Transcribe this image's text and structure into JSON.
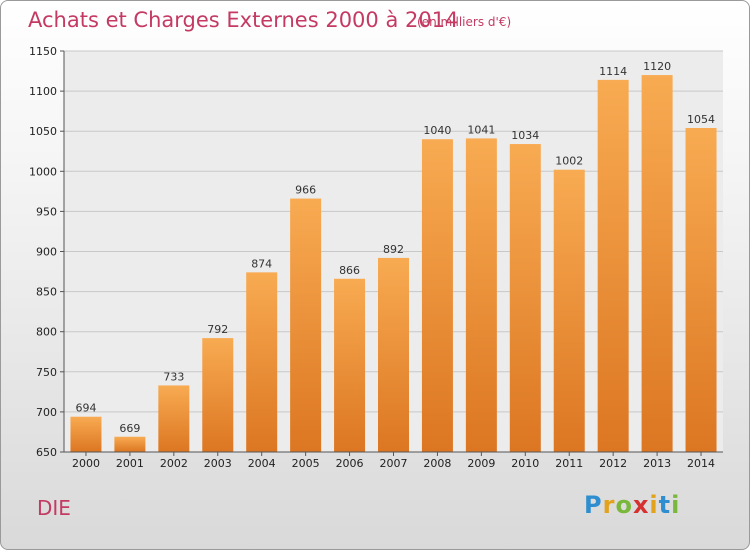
{
  "chart_data": {
    "type": "bar",
    "title": "Achats et Charges Externes 2000 à 2014",
    "unit_note": "(en milliers d'€)",
    "categories": [
      "2000",
      "2001",
      "2002",
      "2003",
      "2004",
      "2005",
      "2006",
      "2007",
      "2008",
      "2009",
      "2010",
      "2011",
      "2012",
      "2013",
      "2014"
    ],
    "values": [
      694,
      669,
      733,
      792,
      874,
      966,
      866,
      892,
      1040,
      1041,
      1034,
      1002,
      1114,
      1120,
      1054
    ],
    "ylim": [
      650,
      1150
    ],
    "yticks": [
      650,
      700,
      750,
      800,
      850,
      900,
      950,
      1000,
      1050,
      1100,
      1150
    ],
    "grid": true,
    "bar_color": "#f0913a"
  },
  "footer": {
    "place": "DIE",
    "brand": "Proxiti"
  },
  "colors": {
    "title": "#c43a63",
    "bar_light": "#f7a94e",
    "bar_dark": "#d97420"
  }
}
